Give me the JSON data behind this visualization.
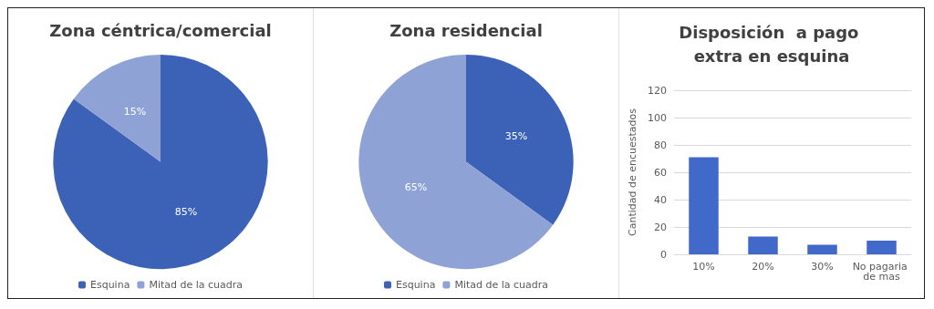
{
  "chart_data": [
    {
      "type": "pie",
      "title": "Zona céntrica/comercial",
      "categories": [
        "Esquina",
        "Mitad de la cuadra"
      ],
      "values": [
        85,
        15
      ],
      "colors": [
        "#3c62b8",
        "#8fa2d6"
      ],
      "value_labels": [
        "85%",
        "15%"
      ],
      "legend": "bottom"
    },
    {
      "type": "pie",
      "title": "Zona residencial",
      "categories": [
        "Esquina",
        "Mitad de la cuadra"
      ],
      "values": [
        35,
        65
      ],
      "colors": [
        "#3c62b8",
        "#8fa2d6"
      ],
      "value_labels": [
        "35%",
        "65%"
      ],
      "legend": "bottom"
    },
    {
      "type": "bar",
      "title": "Disposición  a pago extra en esquina",
      "ylabel": "Cantidad de encuestados",
      "categories": [
        "10%",
        "20%",
        "30%",
        "No pagaria de mas"
      ],
      "values": [
        71,
        13,
        7,
        10
      ],
      "color": "#4169c9",
      "ylim": [
        0,
        120
      ],
      "yticks": [
        0,
        20,
        40,
        60,
        80,
        100,
        120
      ],
      "grid": "y",
      "legend": false
    }
  ]
}
